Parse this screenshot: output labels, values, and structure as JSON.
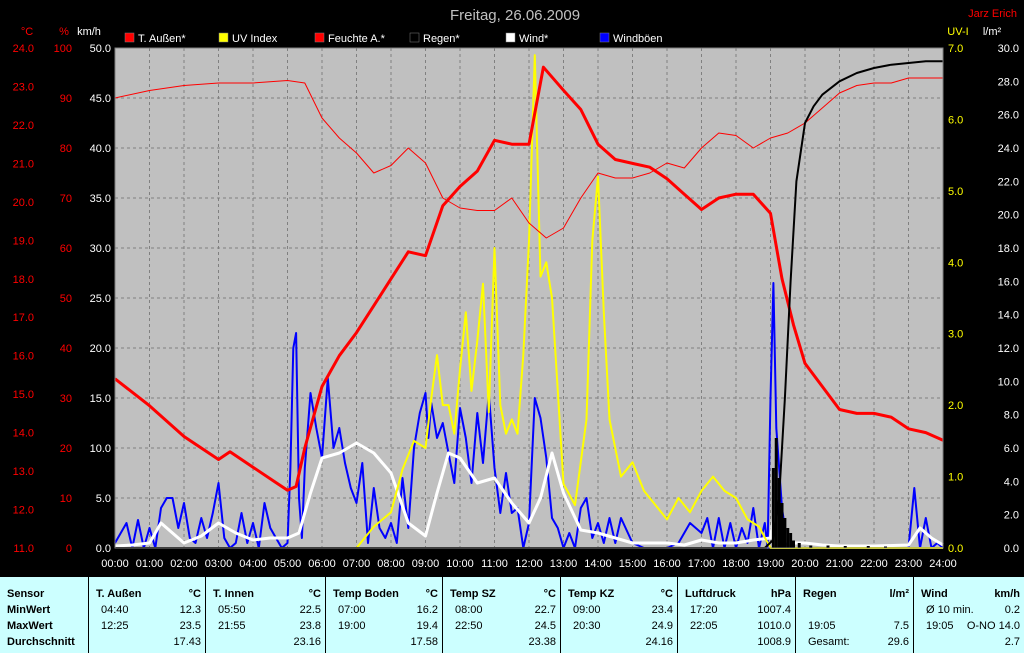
{
  "title": "Freitag, 26.06.2009",
  "author": "Jarz Erich",
  "colors": {
    "plot_bg": "#c0c0c0",
    "temp_axis": "#ff0000",
    "wind_axis": "#ffffff",
    "uv_axis": "#ffff00",
    "rain_axis": "#ffffff",
    "temp": "#ff0000",
    "uv": "#ffff00",
    "humidity": "#ff0000",
    "rain": "#000000",
    "wind": "#ffffff",
    "gust": "#0000ff"
  },
  "axes": {
    "temp_unit": "°C",
    "humidity_unit": "%",
    "wind_unit": "km/h",
    "uv_unit": "UV-I",
    "rain_unit": "l/m²",
    "temp_ticks": [
      "24.0",
      "23.0",
      "22.0",
      "21.0",
      "20.0",
      "19.0",
      "18.0",
      "17.0",
      "16.0",
      "15.0",
      "14.0",
      "13.0",
      "12.0",
      "11.0"
    ],
    "humidity_ticks": [
      "100",
      "90",
      "80",
      "70",
      "60",
      "50",
      "40",
      "30",
      "20",
      "10",
      "0"
    ],
    "wind_ticks": [
      "50.0",
      "45.0",
      "40.0",
      "35.0",
      "30.0",
      "25.0",
      "20.0",
      "15.0",
      "10.0",
      "5.0",
      "0.0"
    ],
    "uv_ticks": [
      "7.0",
      "6.0",
      "5.0",
      "4.0",
      "3.0",
      "2.0",
      "1.0",
      "0.0"
    ],
    "rain_ticks": [
      "30.0",
      "28.0",
      "26.0",
      "24.0",
      "22.0",
      "20.0",
      "18.0",
      "16.0",
      "14.0",
      "12.0",
      "10.0",
      "8.0",
      "6.0",
      "4.0",
      "2.0",
      "0.0"
    ],
    "time_ticks": [
      "00:00",
      "01:00",
      "02:00",
      "03:00",
      "04:00",
      "05:00",
      "06:00",
      "07:00",
      "08:00",
      "09:00",
      "10:00",
      "11:00",
      "12:00",
      "13:00",
      "14:00",
      "15:00",
      "16:00",
      "17:00",
      "18:00",
      "19:00",
      "20:00",
      "21:00",
      "22:00",
      "23:00",
      "24:00"
    ]
  },
  "legend": [
    {
      "label": "T. Außen*",
      "color": "#ff0000"
    },
    {
      "label": "UV Index",
      "color": "#ffff00"
    },
    {
      "label": "Feuchte A.*",
      "color": "#ff0000"
    },
    {
      "label": "Regen*",
      "color": "#000000"
    },
    {
      "label": "Wind*",
      "color": "#ffffff"
    },
    {
      "label": "Windböen",
      "color": "#0000ff"
    }
  ],
  "chart_data": {
    "type": "line",
    "title": "Freitag, 26.06.2009",
    "x_range": [
      "00:00",
      "24:00"
    ],
    "temp_range": [
      11.0,
      24.0
    ],
    "humidity_range": [
      0,
      100
    ],
    "wind_range": [
      0,
      50
    ],
    "uv_range": [
      0,
      7
    ],
    "rain_range": [
      0,
      30
    ],
    "grid": true,
    "legend_position": "top",
    "series": [
      {
        "name": "T. Außen*",
        "axis": "temp",
        "color": "#ff0000",
        "width": 3,
        "x": [
          "00:00",
          "01:00",
          "02:00",
          "03:00",
          "03:20",
          "04:00",
          "04:40",
          "05:00",
          "05:15",
          "05:30",
          "06:00",
          "06:30",
          "07:00",
          "07:30",
          "08:00",
          "08:30",
          "09:00",
          "09:30",
          "10:00",
          "10:30",
          "11:00",
          "11:30",
          "12:00",
          "12:25",
          "13:00",
          "13:30",
          "14:00",
          "14:30",
          "15:00",
          "15:30",
          "16:00",
          "16:30",
          "17:00",
          "17:30",
          "18:00",
          "18:30",
          "19:00",
          "19:20",
          "19:40",
          "20:00",
          "20:30",
          "21:00",
          "21:30",
          "22:00",
          "22:30",
          "23:00",
          "23:30",
          "24:00"
        ],
        "y": [
          15.4,
          14.7,
          13.9,
          13.3,
          13.5,
          13.1,
          12.7,
          12.5,
          12.6,
          13.6,
          15.2,
          16.0,
          16.6,
          17.3,
          18.0,
          18.7,
          18.6,
          19.9,
          20.4,
          20.8,
          21.6,
          21.5,
          21.5,
          23.5,
          22.9,
          22.4,
          21.5,
          21.1,
          21.0,
          20.9,
          20.6,
          20.2,
          19.8,
          20.1,
          20.2,
          20.2,
          19.7,
          18.0,
          16.8,
          15.8,
          15.2,
          14.6,
          14.5,
          14.5,
          14.4,
          14.1,
          14.0,
          13.8
        ]
      },
      {
        "name": "Feuchte A.*",
        "axis": "humidity",
        "color": "#ff0000",
        "width": 1,
        "x": [
          "00:00",
          "01:00",
          "02:00",
          "03:00",
          "04:00",
          "05:00",
          "05:30",
          "06:00",
          "06:30",
          "07:00",
          "07:30",
          "08:00",
          "08:30",
          "09:00",
          "09:30",
          "10:00",
          "10:30",
          "11:00",
          "11:30",
          "12:00",
          "12:30",
          "13:00",
          "13:30",
          "14:00",
          "14:30",
          "15:00",
          "15:30",
          "16:00",
          "16:30",
          "17:00",
          "17:30",
          "18:00",
          "18:30",
          "19:00",
          "19:30",
          "20:00",
          "20:30",
          "21:00",
          "21:30",
          "22:00",
          "22:30",
          "23:00",
          "23:30",
          "24:00"
        ],
        "y": [
          90,
          91.5,
          92.5,
          93,
          93,
          93.5,
          93,
          86,
          82,
          79,
          75,
          76.5,
          80,
          77,
          70,
          68,
          67.5,
          67.5,
          70,
          65,
          62,
          64,
          70,
          75,
          74,
          74,
          75,
          77,
          76,
          80,
          83,
          82.5,
          80,
          82,
          83,
          85,
          88,
          91,
          92.5,
          93,
          93,
          94,
          94,
          94
        ]
      },
      {
        "name": "Regen*",
        "axis": "rain",
        "color": "#000000",
        "width": 2,
        "x": [
          "00:00",
          "18:50",
          "19:05",
          "19:15",
          "19:25",
          "19:35",
          "19:45",
          "20:00",
          "20:15",
          "20:30",
          "21:00",
          "21:30",
          "22:00",
          "22:30",
          "23:00",
          "23:30",
          "24:00"
        ],
        "y": [
          0,
          0,
          0.5,
          3,
          9,
          16,
          22,
          25.5,
          26.5,
          27.2,
          28.0,
          28.5,
          28.8,
          29.0,
          29.1,
          29.2,
          29.2
        ]
      },
      {
        "name": "UV Index",
        "axis": "uv",
        "color": "#ffff00",
        "width": 2,
        "x": [
          "00:00",
          "07:00",
          "07:30",
          "08:00",
          "08:20",
          "08:40",
          "09:00",
          "09:10",
          "09:20",
          "09:30",
          "09:40",
          "09:50",
          "10:00",
          "10:10",
          "10:20",
          "10:30",
          "10:40",
          "10:50",
          "11:00",
          "11:10",
          "11:20",
          "11:30",
          "11:40",
          "11:50",
          "12:00",
          "12:10",
          "12:20",
          "12:30",
          "12:40",
          "12:50",
          "13:00",
          "13:20",
          "13:40",
          "13:50",
          "14:00",
          "14:10",
          "14:20",
          "14:40",
          "15:00",
          "15:20",
          "15:40",
          "16:00",
          "16:20",
          "16:40",
          "17:00",
          "17:20",
          "17:40",
          "18:00",
          "18:20",
          "18:40",
          "19:00",
          "24:00"
        ],
        "y": [
          0,
          0,
          0.3,
          0.5,
          1.1,
          1.5,
          1.4,
          2.1,
          2.7,
          2.0,
          2.0,
          1.6,
          2.5,
          3.3,
          2.2,
          2.9,
          3.7,
          1.9,
          4.2,
          2.0,
          1.6,
          1.8,
          1.6,
          2.7,
          4.3,
          6.9,
          3.8,
          4.0,
          3.5,
          2.2,
          0.9,
          0.6,
          1.8,
          4.3,
          5.2,
          3.3,
          1.8,
          1.0,
          1.2,
          0.8,
          0.6,
          0.4,
          0.7,
          0.5,
          0.8,
          1.0,
          0.8,
          0.7,
          0.4,
          0.3,
          0,
          0
        ]
      },
      {
        "name": "Wind*",
        "axis": "wind",
        "color": "#ffffff",
        "width": 3,
        "x": [
          "00:00",
          "00:30",
          "01:00",
          "01:20",
          "01:40",
          "02:00",
          "02:30",
          "03:00",
          "03:30",
          "04:00",
          "04:30",
          "05:00",
          "05:20",
          "05:40",
          "06:00",
          "06:30",
          "07:00",
          "07:30",
          "08:00",
          "08:30",
          "09:00",
          "09:20",
          "09:40",
          "10:00",
          "10:30",
          "11:00",
          "11:30",
          "12:00",
          "12:20",
          "12:40",
          "13:00",
          "13:30",
          "14:00",
          "14:30",
          "15:00",
          "15:30",
          "16:00",
          "16:30",
          "17:00",
          "17:30",
          "18:00",
          "18:30",
          "19:00",
          "19:10",
          "19:20",
          "19:30",
          "20:00",
          "20:30",
          "21:00",
          "22:00",
          "23:00",
          "23:20",
          "23:40",
          "24:00"
        ],
        "y": [
          0.2,
          0.3,
          0.5,
          2.5,
          1.5,
          0.5,
          1.2,
          2.5,
          1.5,
          0.8,
          1.0,
          1.0,
          1.5,
          5.5,
          9.0,
          9.5,
          10.5,
          9.5,
          7.5,
          2.5,
          1.2,
          5.5,
          9.5,
          9.0,
          6.5,
          7.0,
          4.5,
          2.5,
          5.0,
          9.5,
          5.5,
          1.8,
          1.5,
          1.0,
          0.5,
          0.5,
          0.5,
          0.3,
          0.8,
          0.5,
          0.5,
          0.8,
          1.0,
          5.0,
          3.0,
          0.5,
          0.5,
          0.3,
          0.2,
          0.2,
          0.3,
          2.0,
          1.0,
          0.3
        ]
      },
      {
        "name": "Windböen",
        "axis": "wind",
        "color": "#0000ff",
        "width": 2,
        "x": [
          "00:00",
          "00:20",
          "00:30",
          "00:40",
          "00:50",
          "01:00",
          "01:10",
          "01:20",
          "01:30",
          "01:40",
          "01:50",
          "02:00",
          "02:10",
          "02:20",
          "02:30",
          "02:40",
          "02:50",
          "03:00",
          "03:10",
          "03:20",
          "03:30",
          "03:40",
          "03:50",
          "04:00",
          "04:10",
          "04:20",
          "04:30",
          "04:40",
          "04:50",
          "05:00",
          "05:05",
          "05:10",
          "05:15",
          "05:20",
          "05:25",
          "05:30",
          "05:40",
          "05:50",
          "06:00",
          "06:10",
          "06:20",
          "06:30",
          "06:40",
          "06:50",
          "07:00",
          "07:10",
          "07:20",
          "07:30",
          "07:40",
          "07:50",
          "08:00",
          "08:10",
          "08:20",
          "08:30",
          "08:40",
          "08:50",
          "09:00",
          "09:05",
          "09:10",
          "09:20",
          "09:30",
          "09:40",
          "09:50",
          "10:00",
          "10:10",
          "10:20",
          "10:30",
          "10:40",
          "10:50",
          "11:00",
          "11:10",
          "11:20",
          "11:30",
          "11:40",
          "11:50",
          "12:00",
          "12:10",
          "12:20",
          "12:30",
          "12:40",
          "12:50",
          "13:00",
          "13:10",
          "13:20",
          "13:30",
          "13:40",
          "13:50",
          "14:00",
          "14:10",
          "14:20",
          "14:30",
          "14:40",
          "15:00",
          "15:20",
          "15:40",
          "16:00",
          "16:20",
          "16:40",
          "17:00",
          "17:10",
          "17:20",
          "17:30",
          "17:40",
          "17:50",
          "18:00",
          "18:10",
          "18:20",
          "18:30",
          "18:40",
          "18:50",
          "18:55",
          "19:00",
          "19:05",
          "19:10",
          "19:20",
          "19:30",
          "19:40",
          "19:50",
          "20:00",
          "20:30",
          "21:00",
          "22:00",
          "23:00",
          "23:10",
          "23:20",
          "23:30",
          "23:40",
          "23:50",
          "24:00"
        ],
        "y": [
          0.5,
          2.5,
          0,
          2.8,
          0,
          2.0,
          0,
          4.0,
          5.0,
          5.0,
          2.0,
          4.5,
          1.0,
          0.5,
          3.0,
          1.0,
          3.5,
          6.5,
          1.0,
          0,
          0.5,
          3.5,
          0.5,
          2.5,
          0,
          4.5,
          2.0,
          1.0,
          0,
          0.5,
          8.0,
          20.0,
          21.5,
          5.0,
          1.0,
          8.0,
          15.5,
          12.0,
          9.0,
          17.0,
          10.0,
          12.0,
          8.5,
          6.0,
          4.5,
          8.5,
          0.5,
          6.0,
          2.0,
          1.0,
          2.5,
          0.5,
          7.0,
          2.0,
          10.0,
          13.5,
          15.5,
          11.0,
          14.5,
          11.0,
          12.5,
          9.5,
          6.5,
          14.0,
          11.0,
          6.5,
          13.5,
          8.5,
          15.5,
          8.0,
          3.5,
          7.5,
          3.5,
          4.0,
          0,
          2.5,
          15.0,
          13.0,
          9.0,
          3.0,
          2.0,
          0,
          1.5,
          0,
          4.0,
          5.0,
          1.0,
          2.5,
          0.5,
          3.0,
          0.5,
          3.0,
          0.5,
          0,
          0,
          0,
          0.5,
          2.5,
          1.5,
          3.0,
          0,
          3.0,
          0,
          2.5,
          0,
          2.0,
          0.5,
          4.0,
          0,
          2.5,
          0,
          15.0,
          26.5,
          12.0,
          4.0,
          0,
          0,
          0,
          0,
          0,
          0,
          0,
          0,
          6.0,
          0,
          3.0,
          0,
          0.5,
          0
        ]
      }
    ]
  },
  "table": {
    "sensor": {
      "header": "Sensor",
      "row_labels": [
        "MinWert",
        "MaxWert",
        "Durchschnitt"
      ]
    },
    "groups": [
      {
        "title": "T. Außen",
        "unit": "°C",
        "rows": [
          [
            "04:40",
            "12.3"
          ],
          [
            "12:25",
            "23.5"
          ],
          [
            "",
            "17.43"
          ]
        ]
      },
      {
        "title": "T. Innen",
        "unit": "°C",
        "rows": [
          [
            "05:50",
            "22.5"
          ],
          [
            "21:55",
            "23.8"
          ],
          [
            "",
            "23.16"
          ]
        ]
      },
      {
        "title": "Temp Boden",
        "unit": "°C",
        "rows": [
          [
            "07:00",
            "16.2"
          ],
          [
            "19:00",
            "19.4"
          ],
          [
            "",
            "17.58"
          ]
        ]
      },
      {
        "title": "Temp SZ",
        "unit": "°C",
        "rows": [
          [
            "08:00",
            "22.7"
          ],
          [
            "22:50",
            "24.5"
          ],
          [
            "",
            "23.38"
          ]
        ]
      },
      {
        "title": "Temp KZ",
        "unit": "°C",
        "rows": [
          [
            "09:00",
            "23.4"
          ],
          [
            "20:30",
            "24.9"
          ],
          [
            "",
            "24.16"
          ]
        ]
      },
      {
        "title": "Luftdruck",
        "unit": "hPa",
        "rows": [
          [
            "17:20",
            "1007.4"
          ],
          [
            "22:05",
            "1010.0"
          ],
          [
            "",
            "1008.9"
          ]
        ]
      },
      {
        "title": "Regen",
        "unit": "l/m²",
        "rows": [
          [
            "",
            ""
          ],
          [
            "19:05",
            "7.5"
          ],
          [
            "Gesamt:",
            "29.6"
          ]
        ]
      },
      {
        "title": "Wind",
        "unit": "km/h",
        "rows": [
          [
            "Ø 10 min.",
            "0.2"
          ],
          [
            "19:05",
            "O-NO 14.0"
          ],
          [
            "",
            "2.7"
          ]
        ]
      }
    ]
  }
}
